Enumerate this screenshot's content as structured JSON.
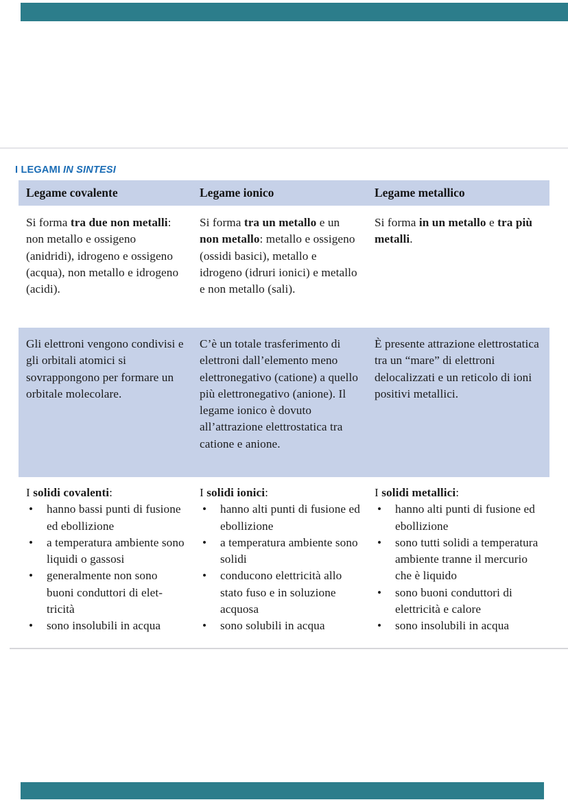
{
  "colors": {
    "teal_bar": "#2c7d8b",
    "heading_blue": "#1a6cb5",
    "band_blue": "#c6d1e8",
    "text": "#1b1b1b",
    "rule_light": "#e4e4e8",
    "rule_dark": "#d6d6da"
  },
  "heading": {
    "normal": "I LEGAMI",
    "italic": "IN SINTESI"
  },
  "table": {
    "columns": [
      {
        "header": "Legame covalente",
        "formation": [
          {
            "text": "Si forma ",
            "bold": false
          },
          {
            "text": "tra due non metalli",
            "bold": true
          },
          {
            "text": ": non metallo e ossigeno (anidridi), idrogeno e ossigeno (acqua), non metallo e idrogeno (acidi).",
            "bold": false
          }
        ],
        "mechanism": "Gli elettroni vengono con­divisi e gli orbitali atomici si sovrappongono per formare un orbitale molecolare.",
        "solids_intro": [
          {
            "text": "I ",
            "bold": false
          },
          {
            "text": "solidi covalenti",
            "bold": true
          },
          {
            "text": ":",
            "bold": false
          }
        ],
        "solids_bullets": [
          "hanno bassi punti di fu­sione ed ebollizione",
          "a temperatura ambiente sono liquidi o gassosi",
          "generalmente non sono buoni conduttori di elet­tricità",
          "sono insolubili in acqua"
        ]
      },
      {
        "header": "Legame ionico",
        "formation": [
          {
            "text": "Si forma ",
            "bold": false
          },
          {
            "text": "tra un metallo",
            "bold": true
          },
          {
            "text": " e un ",
            "bold": false
          },
          {
            "text": "non metallo",
            "bold": true
          },
          {
            "text": ": metallo e ossi­geno (ossidi basici), metallo e idrogeno (idruri ionici) e metallo e non metallo (sali).",
            "bold": false
          }
        ],
        "mechanism": "C’è un totale trasferimento di elettroni dall’elemento meno elettronegativo (catione) a quello più elettronegativo (anione). Il legame ionico è dovuto all’attrazione elettrostatica tra catione e anione.",
        "solids_intro": [
          {
            "text": "I ",
            "bold": false
          },
          {
            "text": "solidi ionici",
            "bold": true
          },
          {
            "text": ":",
            "bold": false
          }
        ],
        "solids_bullets": [
          "hanno alti punti di fusio­ne ed ebollizione",
          "a temperatura ambiente sono solidi",
          "conducono elettricità allo stato fuso e in soluzione acquosa",
          "sono solubili in acqua"
        ]
      },
      {
        "header": "Legame metallico",
        "formation": [
          {
            "text": "Si forma ",
            "bold": false
          },
          {
            "text": "in un metallo",
            "bold": true
          },
          {
            "text": " e ",
            "bold": false
          },
          {
            "text": "tra più metalli",
            "bold": true
          },
          {
            "text": ".",
            "bold": false
          }
        ],
        "mechanism": "È presente attrazione elet­trostatica tra un “mare” di elettroni delocalizzati e un reticolo di ioni positivi me­tallici.",
        "solids_intro": [
          {
            "text": "I ",
            "bold": false
          },
          {
            "text": "solidi metallici",
            "bold": true
          },
          {
            "text": ":",
            "bold": false
          }
        ],
        "solids_bullets": [
          "hanno alti punti di fusio­ne ed ebollizione",
          "sono tutti solidi a tempe­ratura ambiente tranne il mercurio che è liquido",
          "sono buoni conduttori di elettricità e calore",
          "sono insolubili in acqua"
        ]
      }
    ]
  }
}
